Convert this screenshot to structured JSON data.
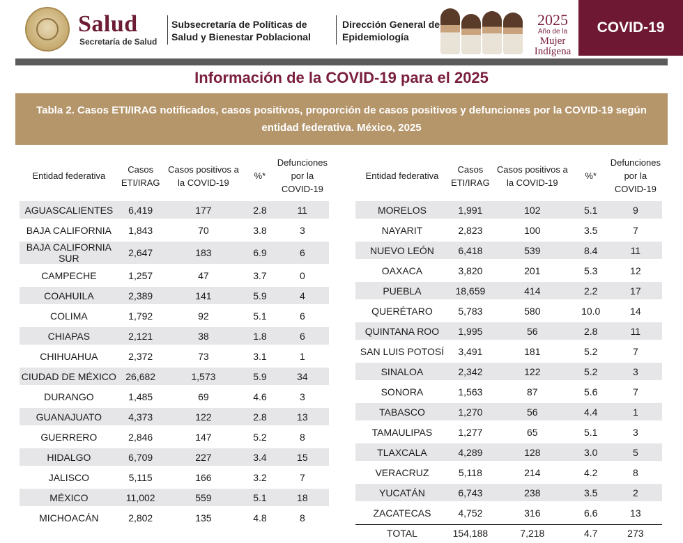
{
  "header": {
    "salud": "Salud",
    "secretaria": "Secretaría de Salud",
    "subsecretaria": "Subsecretaría de Políticas de Salud y Bienestar Poblacional",
    "direccion": "Dirección General de Epidemiología",
    "year": "2025",
    "anio": "Año de la",
    "mujer": "Mujer",
    "indigena": "Indígena",
    "badge": "COVID-19"
  },
  "title": "Información de la COVID-19 para el 2025",
  "subtitle": "Tabla 2. Casos ETI/IRAG notificados, casos positivos, proporción de casos positivos  y defunciones por la COVID-19 según entidad federativa. México, 2025",
  "columns": {
    "entidad": "Entidad federativa",
    "casos": "Casos ETI/IRAG",
    "positivos": "Casos positivos a la COVID-19",
    "pct": "%*",
    "defunciones": "Defunciones por la COVID-19"
  },
  "left_rows": [
    {
      "entidad": "AGUASCALIENTES",
      "casos": "6,419",
      "positivos": "177",
      "pct": "2.8",
      "defunciones": "11"
    },
    {
      "entidad": "BAJA CALIFORNIA",
      "casos": "1,843",
      "positivos": "70",
      "pct": "3.8",
      "defunciones": "3"
    },
    {
      "entidad": "BAJA CALIFORNIA SUR",
      "casos": "2,647",
      "positivos": "183",
      "pct": "6.9",
      "defunciones": "6"
    },
    {
      "entidad": "CAMPECHE",
      "casos": "1,257",
      "positivos": "47",
      "pct": "3.7",
      "defunciones": "0"
    },
    {
      "entidad": "COAHUILA",
      "casos": "2,389",
      "positivos": "141",
      "pct": "5.9",
      "defunciones": "4"
    },
    {
      "entidad": "COLIMA",
      "casos": "1,792",
      "positivos": "92",
      "pct": "5.1",
      "defunciones": "6"
    },
    {
      "entidad": "CHIAPAS",
      "casos": "2,121",
      "positivos": "38",
      "pct": "1.8",
      "defunciones": "6"
    },
    {
      "entidad": "CHIHUAHUA",
      "casos": "2,372",
      "positivos": "73",
      "pct": "3.1",
      "defunciones": "1"
    },
    {
      "entidad": "CIUDAD DE MÉXICO",
      "casos": "26,682",
      "positivos": "1,573",
      "pct": "5.9",
      "defunciones": "34"
    },
    {
      "entidad": "DURANGO",
      "casos": "1,485",
      "positivos": "69",
      "pct": "4.6",
      "defunciones": "3"
    },
    {
      "entidad": "GUANAJUATO",
      "casos": "4,373",
      "positivos": "122",
      "pct": "2.8",
      "defunciones": "13"
    },
    {
      "entidad": "GUERRERO",
      "casos": "2,846",
      "positivos": "147",
      "pct": "5.2",
      "defunciones": "8"
    },
    {
      "entidad": "HIDALGO",
      "casos": "6,709",
      "positivos": "227",
      "pct": "3.4",
      "defunciones": "15"
    },
    {
      "entidad": "JALISCO",
      "casos": "5,115",
      "positivos": "166",
      "pct": "3.2",
      "defunciones": "7"
    },
    {
      "entidad": "MÉXICO",
      "casos": "11,002",
      "positivos": "559",
      "pct": "5.1",
      "defunciones": "18"
    },
    {
      "entidad": "MICHOACÁN",
      "casos": "2,802",
      "positivos": "135",
      "pct": "4.8",
      "defunciones": "8"
    }
  ],
  "right_rows": [
    {
      "entidad": "MORELOS",
      "casos": "1,991",
      "positivos": "102",
      "pct": "5.1",
      "defunciones": "9"
    },
    {
      "entidad": "NAYARIT",
      "casos": "2,823",
      "positivos": "100",
      "pct": "3.5",
      "defunciones": "7"
    },
    {
      "entidad": "NUEVO LEÓN",
      "casos": "6,418",
      "positivos": "539",
      "pct": "8.4",
      "defunciones": "11"
    },
    {
      "entidad": "OAXACA",
      "casos": "3,820",
      "positivos": "201",
      "pct": "5.3",
      "defunciones": "12"
    },
    {
      "entidad": "PUEBLA",
      "casos": "18,659",
      "positivos": "414",
      "pct": "2.2",
      "defunciones": "17"
    },
    {
      "entidad": "QUERÉTARO",
      "casos": "5,783",
      "positivos": "580",
      "pct": "10.0",
      "defunciones": "14"
    },
    {
      "entidad": "QUINTANA ROO",
      "casos": "1,995",
      "positivos": "56",
      "pct": "2.8",
      "defunciones": "11"
    },
    {
      "entidad": "SAN LUIS POTOSÍ",
      "casos": "3,491",
      "positivos": "181",
      "pct": "5.2",
      "defunciones": "7"
    },
    {
      "entidad": "SINALOA",
      "casos": "2,342",
      "positivos": "122",
      "pct": "5.2",
      "defunciones": "3"
    },
    {
      "entidad": "SONORA",
      "casos": "1,563",
      "positivos": "87",
      "pct": "5.6",
      "defunciones": "7"
    },
    {
      "entidad": "TABASCO",
      "casos": "1,270",
      "positivos": "56",
      "pct": "4.4",
      "defunciones": "1"
    },
    {
      "entidad": "TAMAULIPAS",
      "casos": "1,277",
      "positivos": "65",
      "pct": "5.1",
      "defunciones": "3"
    },
    {
      "entidad": "TLAXCALA",
      "casos": "4,289",
      "positivos": "128",
      "pct": "3.0",
      "defunciones": "5"
    },
    {
      "entidad": "VERACRUZ",
      "casos": "5,118",
      "positivos": "214",
      "pct": "4.2",
      "defunciones": "8"
    },
    {
      "entidad": "YUCATÁN",
      "casos": "6,743",
      "positivos": "238",
      "pct": "3.5",
      "defunciones": "2"
    },
    {
      "entidad": "ZACATECAS",
      "casos": "4,752",
      "positivos": "316",
      "pct": "6.6",
      "defunciones": "13"
    }
  ],
  "total": {
    "entidad": "TOTAL",
    "casos": "154,188",
    "positivos": "7,218",
    "pct": "4.7",
    "defunciones": "273"
  }
}
